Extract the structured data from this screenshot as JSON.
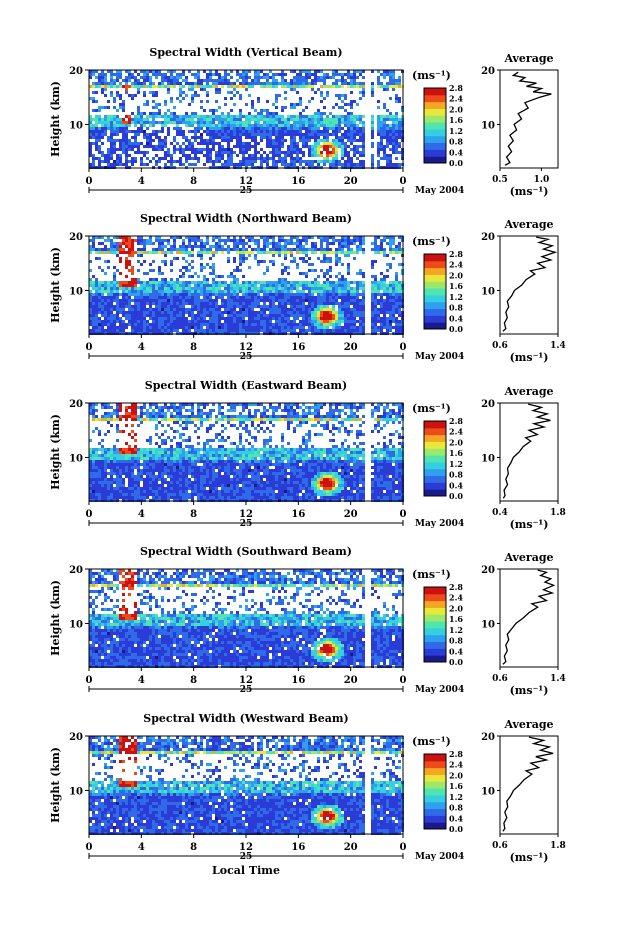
{
  "figure": {
    "xlabel": "Local Time",
    "date_day": "25",
    "date_month_year": "May 2004",
    "colorbar_unit": "(ms⁻¹)",
    "colorbar_ticks": [
      "0.0",
      "0.4",
      "0.8",
      "1.2",
      "1.6",
      "2.0",
      "2.4",
      "2.8"
    ],
    "average_title": "Average",
    "average_xlabel": "(ms⁻¹)",
    "ylabel": "Height (km)",
    "colormap": [
      "#1a1a8c",
      "#2a3bd6",
      "#2f6ae8",
      "#2ea0ef",
      "#34cfe0",
      "#4fe5b0",
      "#9be86a",
      "#e7e83a",
      "#f5a623",
      "#ee4b1c",
      "#cc1111"
    ]
  },
  "chart_data": [
    {
      "type": "heatmap",
      "title": "Spectral Width (Vertical Beam)",
      "x_ticks": [
        "0",
        "4",
        "8",
        "12",
        "16",
        "20",
        "0"
      ],
      "xlim": [
        0,
        24
      ],
      "y_ticks": [
        "10",
        "20"
      ],
      "ylim": [
        2,
        20
      ],
      "clim": [
        0.0,
        2.8
      ],
      "average_profile": {
        "xlim": [
          0.5,
          1.2
        ],
        "x_ticks": [
          "0.5",
          "1.0"
        ],
        "x_tick_values": [
          0.5,
          1.0
        ],
        "points": [
          [
            0.56,
            2.5
          ],
          [
            0.62,
            3
          ],
          [
            0.58,
            4
          ],
          [
            0.64,
            5
          ],
          [
            0.6,
            6
          ],
          [
            0.66,
            7
          ],
          [
            0.62,
            8
          ],
          [
            0.7,
            9
          ],
          [
            0.67,
            10
          ],
          [
            0.76,
            11
          ],
          [
            0.72,
            12
          ],
          [
            0.84,
            13
          ],
          [
            0.8,
            14
          ],
          [
            0.98,
            15
          ],
          [
            1.12,
            15.6
          ],
          [
            0.9,
            16
          ],
          [
            1.0,
            16.6
          ],
          [
            0.82,
            17
          ],
          [
            0.94,
            17.6
          ],
          [
            0.74,
            18
          ],
          [
            0.8,
            18.6
          ],
          [
            0.66,
            19
          ],
          [
            0.72,
            19.6
          ]
        ]
      }
    },
    {
      "type": "heatmap",
      "title": "Spectral Width (Northward Beam)",
      "x_ticks": [
        "0",
        "4",
        "8",
        "12",
        "16",
        "20",
        "0"
      ],
      "xlim": [
        0,
        24
      ],
      "y_ticks": [
        "10",
        "20"
      ],
      "ylim": [
        2,
        20
      ],
      "clim": [
        0.0,
        2.8
      ],
      "average_profile": {
        "xlim": [
          0.6,
          1.4
        ],
        "x_ticks": [
          "0.6",
          "1.4"
        ],
        "x_tick_values": [
          0.6,
          1.4
        ],
        "points": [
          [
            0.64,
            2.5
          ],
          [
            0.68,
            3
          ],
          [
            0.66,
            4
          ],
          [
            0.7,
            5
          ],
          [
            0.68,
            6
          ],
          [
            0.72,
            7
          ],
          [
            0.7,
            8
          ],
          [
            0.76,
            9
          ],
          [
            0.8,
            10
          ],
          [
            0.9,
            11
          ],
          [
            0.96,
            12
          ],
          [
            1.08,
            13
          ],
          [
            1.02,
            13.6
          ],
          [
            1.22,
            14.2
          ],
          [
            1.12,
            15
          ],
          [
            1.3,
            15.6
          ],
          [
            1.18,
            16.2
          ],
          [
            1.36,
            17
          ],
          [
            1.2,
            17.6
          ],
          [
            1.32,
            18.2
          ],
          [
            1.14,
            18.8
          ],
          [
            1.26,
            19.4
          ],
          [
            1.1,
            19.8
          ]
        ]
      }
    },
    {
      "type": "heatmap",
      "title": "Spectral Width (Eastward Beam)",
      "x_ticks": [
        "0",
        "4",
        "8",
        "12",
        "16",
        "20",
        "0"
      ],
      "xlim": [
        0,
        24
      ],
      "y_ticks": [
        "10",
        "20"
      ],
      "ylim": [
        2,
        20
      ],
      "clim": [
        0.0,
        2.8
      ],
      "average_profile": {
        "xlim": [
          0.4,
          1.8
        ],
        "x_ticks": [
          "0.4",
          "1.8"
        ],
        "x_tick_values": [
          0.4,
          1.8
        ],
        "points": [
          [
            0.48,
            2.5
          ],
          [
            0.52,
            3
          ],
          [
            0.5,
            4
          ],
          [
            0.58,
            5
          ],
          [
            0.54,
            6
          ],
          [
            0.6,
            7
          ],
          [
            0.58,
            8
          ],
          [
            0.66,
            9
          ],
          [
            0.72,
            10
          ],
          [
            0.86,
            11
          ],
          [
            0.96,
            12
          ],
          [
            1.14,
            13
          ],
          [
            1.02,
            13.6
          ],
          [
            1.3,
            14.2
          ],
          [
            1.1,
            15
          ],
          [
            1.46,
            15.6
          ],
          [
            1.22,
            16.2
          ],
          [
            1.62,
            16.8
          ],
          [
            1.3,
            17.4
          ],
          [
            1.54,
            18
          ],
          [
            1.2,
            18.6
          ],
          [
            1.4,
            19.2
          ],
          [
            1.08,
            19.8
          ]
        ]
      }
    },
    {
      "type": "heatmap",
      "title": "Spectral Width (Southward Beam)",
      "x_ticks": [
        "0",
        "4",
        "8",
        "12",
        "16",
        "20",
        "0"
      ],
      "xlim": [
        0,
        24
      ],
      "y_ticks": [
        "10",
        "20"
      ],
      "ylim": [
        2,
        20
      ],
      "clim": [
        0.0,
        2.8
      ],
      "average_profile": {
        "xlim": [
          0.6,
          1.4
        ],
        "x_ticks": [
          "0.6",
          "1.4"
        ],
        "x_tick_values": [
          0.6,
          1.4
        ],
        "points": [
          [
            0.64,
            2.5
          ],
          [
            0.68,
            3
          ],
          [
            0.66,
            4
          ],
          [
            0.7,
            5
          ],
          [
            0.68,
            6
          ],
          [
            0.72,
            7
          ],
          [
            0.7,
            8
          ],
          [
            0.76,
            9
          ],
          [
            0.82,
            10
          ],
          [
            0.92,
            11
          ],
          [
            1.0,
            12
          ],
          [
            1.12,
            13
          ],
          [
            1.04,
            13.6
          ],
          [
            1.24,
            14.2
          ],
          [
            1.14,
            15
          ],
          [
            1.32,
            15.6
          ],
          [
            1.2,
            16.2
          ],
          [
            1.34,
            17
          ],
          [
            1.22,
            17.6
          ],
          [
            1.3,
            18.2
          ],
          [
            1.16,
            18.8
          ],
          [
            1.24,
            19.4
          ],
          [
            1.12,
            19.8
          ]
        ]
      }
    },
    {
      "type": "heatmap",
      "title": "Spectral Width (Westward Beam)",
      "x_ticks": [
        "0",
        "4",
        "8",
        "12",
        "16",
        "20",
        "0"
      ],
      "xlim": [
        0,
        24
      ],
      "y_ticks": [
        "10",
        "20"
      ],
      "ylim": [
        2,
        20
      ],
      "clim": [
        0.0,
        2.8
      ],
      "average_profile": {
        "xlim": [
          0.6,
          1.8
        ],
        "x_ticks": [
          "0.6",
          "1.8"
        ],
        "x_tick_values": [
          0.6,
          1.8
        ],
        "points": [
          [
            0.66,
            2.5
          ],
          [
            0.7,
            3
          ],
          [
            0.68,
            4
          ],
          [
            0.74,
            5
          ],
          [
            0.7,
            6
          ],
          [
            0.76,
            7
          ],
          [
            0.74,
            8
          ],
          [
            0.82,
            9
          ],
          [
            0.88,
            10
          ],
          [
            1.0,
            11
          ],
          [
            1.1,
            12
          ],
          [
            1.26,
            13
          ],
          [
            1.14,
            13.6
          ],
          [
            1.4,
            14.2
          ],
          [
            1.24,
            15
          ],
          [
            1.56,
            15.6
          ],
          [
            1.34,
            16.2
          ],
          [
            1.7,
            16.8
          ],
          [
            1.44,
            17.4
          ],
          [
            1.62,
            18
          ],
          [
            1.3,
            18.6
          ],
          [
            1.5,
            19.2
          ],
          [
            1.2,
            19.8
          ]
        ]
      }
    }
  ]
}
